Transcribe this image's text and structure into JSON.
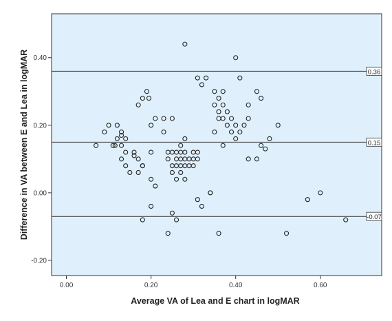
{
  "chart_data": {
    "type": "scatter",
    "title": "",
    "xlabel": "Average VA of Lea and E chart in logMAR",
    "ylabel": "Difference in VA between E and Lea in logMAR",
    "xlim": [
      -0.035,
      0.745
    ],
    "ylim": [
      -0.245,
      0.53
    ],
    "x_ticks": [
      0.0,
      0.2,
      0.4,
      0.6
    ],
    "x_tick_labels": [
      "0.00",
      "0.20",
      "0.40",
      "0.60"
    ],
    "y_ticks": [
      -0.2,
      0.0,
      0.2,
      0.4
    ],
    "y_tick_labels": [
      "-0.20",
      "0.00",
      "0.20",
      "0.40"
    ],
    "grid": false,
    "plot_background": "#dff0fc",
    "page_background": "#ffffff",
    "reference_lines": [
      {
        "value": 0.36,
        "label": "0.36"
      },
      {
        "value": 0.15,
        "label": "0.15"
      },
      {
        "value": -0.07,
        "label": "-0.07"
      }
    ],
    "series": [
      {
        "marker": "open-circle",
        "color": "#222222",
        "points": [
          [
            0.07,
            0.14
          ],
          [
            0.09,
            0.18
          ],
          [
            0.1,
            0.2
          ],
          [
            0.11,
            0.14
          ],
          [
            0.115,
            0.14
          ],
          [
            0.12,
            0.16
          ],
          [
            0.12,
            0.2
          ],
          [
            0.13,
            0.18
          ],
          [
            0.13,
            0.17
          ],
          [
            0.13,
            0.14
          ],
          [
            0.13,
            0.1
          ],
          [
            0.14,
            0.16
          ],
          [
            0.14,
            0.12
          ],
          [
            0.14,
            0.08
          ],
          [
            0.15,
            0.06
          ],
          [
            0.16,
            0.12
          ],
          [
            0.16,
            0.11
          ],
          [
            0.17,
            0.1
          ],
          [
            0.17,
            0.06
          ],
          [
            0.17,
            0.26
          ],
          [
            0.18,
            0.28
          ],
          [
            0.18,
            0.08
          ],
          [
            0.18,
            0.08
          ],
          [
            0.18,
            -0.08
          ],
          [
            0.19,
            0.3
          ],
          [
            0.195,
            0.28
          ],
          [
            0.2,
            0.2
          ],
          [
            0.2,
            0.12
          ],
          [
            0.2,
            0.04
          ],
          [
            0.2,
            -0.04
          ],
          [
            0.21,
            0.22
          ],
          [
            0.21,
            0.02
          ],
          [
            0.23,
            0.22
          ],
          [
            0.23,
            0.18
          ],
          [
            0.24,
            0.12
          ],
          [
            0.24,
            0.1
          ],
          [
            0.24,
            -0.12
          ],
          [
            0.25,
            0.22
          ],
          [
            0.25,
            0.12
          ],
          [
            0.25,
            0.08
          ],
          [
            0.25,
            0.06
          ],
          [
            0.25,
            -0.06
          ],
          [
            0.26,
            0.12
          ],
          [
            0.26,
            0.1
          ],
          [
            0.26,
            0.08
          ],
          [
            0.26,
            0.04
          ],
          [
            0.26,
            -0.08
          ],
          [
            0.27,
            0.14
          ],
          [
            0.27,
            0.12
          ],
          [
            0.27,
            0.1
          ],
          [
            0.27,
            0.08
          ],
          [
            0.27,
            0.06
          ],
          [
            0.28,
            0.44
          ],
          [
            0.28,
            0.16
          ],
          [
            0.28,
            0.12
          ],
          [
            0.28,
            0.1
          ],
          [
            0.28,
            0.08
          ],
          [
            0.28,
            0.04
          ],
          [
            0.29,
            0.1
          ],
          [
            0.29,
            0.08
          ],
          [
            0.3,
            0.12
          ],
          [
            0.3,
            0.1
          ],
          [
            0.3,
            0.08
          ],
          [
            0.31,
            0.34
          ],
          [
            0.31,
            0.12
          ],
          [
            0.31,
            0.1
          ],
          [
            0.31,
            -0.02
          ],
          [
            0.32,
            0.32
          ],
          [
            0.32,
            -0.04
          ],
          [
            0.33,
            0.34
          ],
          [
            0.34,
            0.0
          ],
          [
            0.34,
            0.0
          ],
          [
            0.35,
            0.3
          ],
          [
            0.35,
            0.26
          ],
          [
            0.35,
            0.18
          ],
          [
            0.36,
            0.28
          ],
          [
            0.36,
            0.24
          ],
          [
            0.36,
            0.22
          ],
          [
            0.36,
            -0.12
          ],
          [
            0.37,
            0.3
          ],
          [
            0.37,
            0.26
          ],
          [
            0.37,
            0.22
          ],
          [
            0.37,
            0.14
          ],
          [
            0.38,
            0.24
          ],
          [
            0.38,
            0.2
          ],
          [
            0.39,
            0.18
          ],
          [
            0.39,
            0.22
          ],
          [
            0.4,
            0.4
          ],
          [
            0.4,
            0.2
          ],
          [
            0.4,
            0.16
          ],
          [
            0.41,
            0.34
          ],
          [
            0.41,
            0.18
          ],
          [
            0.42,
            0.2
          ],
          [
            0.43,
            0.26
          ],
          [
            0.43,
            0.22
          ],
          [
            0.43,
            0.1
          ],
          [
            0.45,
            0.3
          ],
          [
            0.45,
            0.1
          ],
          [
            0.46,
            0.28
          ],
          [
            0.46,
            0.14
          ],
          [
            0.47,
            0.13
          ],
          [
            0.48,
            0.16
          ],
          [
            0.5,
            0.2
          ],
          [
            0.52,
            -0.12
          ],
          [
            0.57,
            -0.02
          ],
          [
            0.6,
            0.0
          ],
          [
            0.66,
            -0.08
          ]
        ]
      }
    ]
  }
}
